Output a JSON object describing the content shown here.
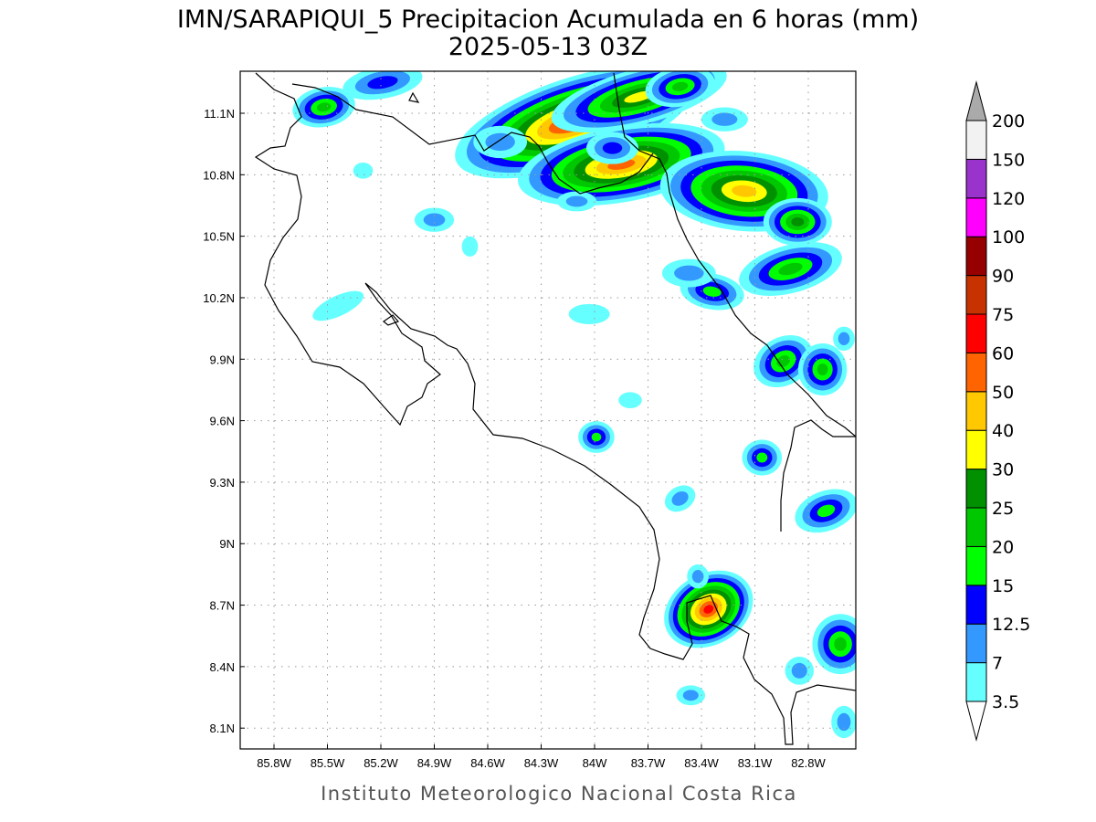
{
  "chart_data": {
    "type": "heatmap",
    "title": "IMN/SARAPIQUI_5 Precipitacion Acumulada en 6 horas (mm)",
    "subtitle": "2025-05-13 03Z",
    "credit": "Instituto Meteorologico Nacional Costa Rica",
    "lon_range": [
      -86.0,
      -82.55
    ],
    "lat_range": [
      8.0,
      11.3
    ],
    "x_ticks": [
      {
        "value": -85.8,
        "label": "85.8W"
      },
      {
        "value": -85.5,
        "label": "85.5W"
      },
      {
        "value": -85.2,
        "label": "85.2W"
      },
      {
        "value": -84.9,
        "label": "84.9W"
      },
      {
        "value": -84.6,
        "label": "84.6W"
      },
      {
        "value": -84.3,
        "label": "84.3W"
      },
      {
        "value": -84.0,
        "label": "84W"
      },
      {
        "value": -83.7,
        "label": "83.7W"
      },
      {
        "value": -83.4,
        "label": "83.4W"
      },
      {
        "value": -83.1,
        "label": "83.1W"
      },
      {
        "value": -82.8,
        "label": "82.8W"
      }
    ],
    "y_ticks": [
      {
        "value": 11.1,
        "label": "11.1N"
      },
      {
        "value": 10.8,
        "label": "10.8N"
      },
      {
        "value": 10.5,
        "label": "10.5N"
      },
      {
        "value": 10.2,
        "label": "10.2N"
      },
      {
        "value": 9.9,
        "label": "9.9N"
      },
      {
        "value": 9.6,
        "label": "9.6N"
      },
      {
        "value": 9.3,
        "label": "9.3N"
      },
      {
        "value": 9.0,
        "label": "9N"
      },
      {
        "value": 8.7,
        "label": "8.7N"
      },
      {
        "value": 8.4,
        "label": "8.4N"
      },
      {
        "value": 8.1,
        "label": "8.1N"
      }
    ],
    "grid": true,
    "colorbar": {
      "placement": "right",
      "levels": [
        {
          "label": "3.5",
          "value": 3.5,
          "color": "#66ffff"
        },
        {
          "label": "7",
          "value": 7,
          "color": "#3399ff"
        },
        {
          "label": "12.5",
          "value": 12.5,
          "color": "#0000ff"
        },
        {
          "label": "15",
          "value": 15,
          "color": "#00ff00"
        },
        {
          "label": "20",
          "value": 20,
          "color": "#00c800"
        },
        {
          "label": "25",
          "value": 25,
          "color": "#009000"
        },
        {
          "label": "30",
          "value": 30,
          "color": "#ffff00"
        },
        {
          "label": "40",
          "value": 40,
          "color": "#ffc800"
        },
        {
          "label": "50",
          "value": 50,
          "color": "#ff6400"
        },
        {
          "label": "60",
          "value": 60,
          "color": "#ff0000"
        },
        {
          "label": "75",
          "value": 75,
          "color": "#c83200"
        },
        {
          "label": "90",
          "value": 90,
          "color": "#960000"
        },
        {
          "label": "100",
          "value": 100,
          "color": "#ff00ff"
        },
        {
          "label": "120",
          "value": 120,
          "color": "#9933cc"
        },
        {
          "label": "150",
          "value": 150,
          "color": "#f2f2f2"
        },
        {
          "label": "200",
          "value": 200,
          "color": "#aaaaaa"
        }
      ]
    },
    "precip_cells": [
      {
        "lon": -84.11,
        "lat": 11.06,
        "peak_mm": 60,
        "rx_deg": 0.55,
        "ry_deg": 0.12,
        "rot": -18
      },
      {
        "lon": -83.75,
        "lat": 11.18,
        "peak_mm": 30,
        "rx_deg": 0.4,
        "ry_deg": 0.07,
        "rot": -15
      },
      {
        "lon": -83.85,
        "lat": 10.85,
        "peak_mm": 50,
        "rx_deg": 0.45,
        "ry_deg": 0.1,
        "rot": -10
      },
      {
        "lon": -83.16,
        "lat": 10.72,
        "peak_mm": 40,
        "rx_deg": 0.35,
        "ry_deg": 0.12,
        "rot": 5
      },
      {
        "lon": -82.86,
        "lat": 10.57,
        "peak_mm": 25,
        "rx_deg": 0.1,
        "ry_deg": 0.06,
        "rot": 0
      },
      {
        "lon": -82.9,
        "lat": 10.34,
        "peak_mm": 20,
        "rx_deg": 0.22,
        "ry_deg": 0.07,
        "rot": -15
      },
      {
        "lon": -83.34,
        "lat": 10.23,
        "peak_mm": 15,
        "rx_deg": 0.12,
        "ry_deg": 0.05,
        "rot": 10
      },
      {
        "lon": -83.47,
        "lat": 10.32,
        "peak_mm": 7,
        "rx_deg": 0.12,
        "ry_deg": 0.05,
        "rot": 0
      },
      {
        "lon": -82.94,
        "lat": 9.89,
        "peak_mm": 20,
        "rx_deg": 0.1,
        "ry_deg": 0.07,
        "rot": -30
      },
      {
        "lon": -82.72,
        "lat": 9.85,
        "peak_mm": 20,
        "rx_deg": 0.06,
        "ry_deg": 0.08,
        "rot": 0
      },
      {
        "lon": -83.36,
        "lat": 8.68,
        "peak_mm": 60,
        "rx_deg": 0.11,
        "ry_deg": 0.08,
        "rot": -30
      },
      {
        "lon": -82.62,
        "lat": 8.51,
        "peak_mm": 20,
        "rx_deg": 0.08,
        "ry_deg": 0.1,
        "rot": 0
      },
      {
        "lon": -82.7,
        "lat": 9.16,
        "peak_mm": 15,
        "rx_deg": 0.12,
        "ry_deg": 0.06,
        "rot": -20
      },
      {
        "lon": -85.52,
        "lat": 11.13,
        "peak_mm": 20,
        "rx_deg": 0.1,
        "ry_deg": 0.05,
        "rot": -10
      },
      {
        "lon": -85.19,
        "lat": 11.25,
        "peak_mm": 12.5,
        "rx_deg": 0.18,
        "ry_deg": 0.05,
        "rot": -10
      },
      {
        "lon": -83.52,
        "lat": 11.23,
        "peak_mm": 20,
        "rx_deg": 0.12,
        "ry_deg": 0.05,
        "rot": -10
      },
      {
        "lon": -84.53,
        "lat": 10.96,
        "peak_mm": 7,
        "rx_deg": 0.12,
        "ry_deg": 0.06,
        "rot": 0
      },
      {
        "lon": -83.99,
        "lat": 9.52,
        "peak_mm": 15,
        "rx_deg": 0.04,
        "ry_deg": 0.04,
        "rot": 0
      },
      {
        "lon": -83.06,
        "lat": 9.42,
        "peak_mm": 15,
        "rx_deg": 0.05,
        "ry_deg": 0.05,
        "rot": 0
      },
      {
        "lon": -85.44,
        "lat": 10.16,
        "peak_mm": 3.5,
        "rx_deg": 0.14,
        "ry_deg": 0.04,
        "rot": -25
      },
      {
        "lon": -84.9,
        "lat": 10.58,
        "peak_mm": 7,
        "rx_deg": 0.08,
        "ry_deg": 0.04,
        "rot": 0
      },
      {
        "lon": -83.9,
        "lat": 10.93,
        "peak_mm": 12.5,
        "rx_deg": 0.1,
        "ry_deg": 0.05,
        "rot": 0
      },
      {
        "lon": -84.1,
        "lat": 10.67,
        "peak_mm": 7,
        "rx_deg": 0.08,
        "ry_deg": 0.03,
        "rot": 0
      },
      {
        "lon": -83.27,
        "lat": 11.07,
        "peak_mm": 7,
        "rx_deg": 0.1,
        "ry_deg": 0.04,
        "rot": 0
      },
      {
        "lon": -84.03,
        "lat": 10.12,
        "peak_mm": 3.5,
        "rx_deg": 0.1,
        "ry_deg": 0.04,
        "rot": 0
      },
      {
        "lon": -83.52,
        "lat": 9.22,
        "peak_mm": 7,
        "rx_deg": 0.06,
        "ry_deg": 0.04,
        "rot": -30
      },
      {
        "lon": -82.6,
        "lat": 8.13,
        "peak_mm": 7,
        "rx_deg": 0.04,
        "ry_deg": 0.06,
        "rot": 0
      },
      {
        "lon": -83.46,
        "lat": 8.26,
        "peak_mm": 7,
        "rx_deg": 0.05,
        "ry_deg": 0.03,
        "rot": 0
      },
      {
        "lon": -85.3,
        "lat": 10.82,
        "peak_mm": 3.5,
        "rx_deg": 0.04,
        "ry_deg": 0.03,
        "rot": 0
      },
      {
        "lon": -84.7,
        "lat": 10.45,
        "peak_mm": 3.5,
        "rx_deg": 0.03,
        "ry_deg": 0.04,
        "rot": 0
      },
      {
        "lon": -83.8,
        "lat": 9.7,
        "peak_mm": 3.5,
        "rx_deg": 0.05,
        "ry_deg": 0.03,
        "rot": 0
      },
      {
        "lon": -82.6,
        "lat": 10.0,
        "peak_mm": 7,
        "rx_deg": 0.03,
        "ry_deg": 0.04,
        "rot": 0
      },
      {
        "lon": -82.85,
        "lat": 8.38,
        "peak_mm": 7,
        "rx_deg": 0.05,
        "ry_deg": 0.05,
        "rot": 0
      },
      {
        "lon": -83.42,
        "lat": 8.84,
        "peak_mm": 7,
        "rx_deg": 0.03,
        "ry_deg": 0.04,
        "rot": 0
      }
    ]
  }
}
